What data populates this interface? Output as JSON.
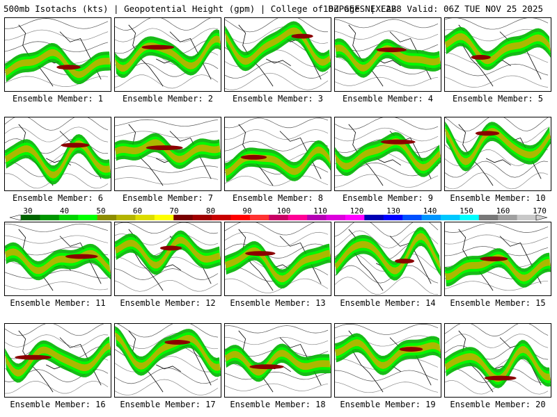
{
  "header": {
    "left": "500mb Isotachs (kts) | Geopotential Height (gpm) | College of DuPage NEXLAB",
    "right": "18Z GEFS | F228 Valid: 06Z TUE NOV 25 2025"
  },
  "members": [
    "Ensemble Member: 1",
    "Ensemble Member: 2",
    "Ensemble Member: 3",
    "Ensemble Member: 4",
    "Ensemble Member: 5",
    "Ensemble Member: 6",
    "Ensemble Member: 7",
    "Ensemble Member: 8",
    "Ensemble Member: 9",
    "Ensemble Member: 10",
    "Ensemble Member: 11",
    "Ensemble Member: 12",
    "Ensemble Member: 13",
    "Ensemble Member: 14",
    "Ensemble Member: 15",
    "Ensemble Member: 16",
    "Ensemble Member: 17",
    "Ensemble Member: 18",
    "Ensemble Member: 19",
    "Ensemble Member: 20"
  ],
  "colorbar": {
    "labels": [
      "30",
      "40",
      "50",
      "60",
      "70",
      "80",
      "90",
      "100",
      "110",
      "120",
      "130",
      "140",
      "150",
      "160",
      "170"
    ],
    "colors": [
      "#006400",
      "#009600",
      "#00d200",
      "#00ff00",
      "#8c8c00",
      "#b4b400",
      "#dcdc00",
      "#ffff00",
      "#780000",
      "#a00000",
      "#c80000",
      "#ff0000",
      "#ff3232",
      "#c80064",
      "#ff0096",
      "#b400b4",
      "#dc00dc",
      "#ff00ff",
      "#0000b4",
      "#0000ff",
      "#0050ff",
      "#0096ff",
      "#00c8ff",
      "#00ffff",
      "#787878",
      "#a0a0a0",
      "#c8c8c8"
    ]
  }
}
